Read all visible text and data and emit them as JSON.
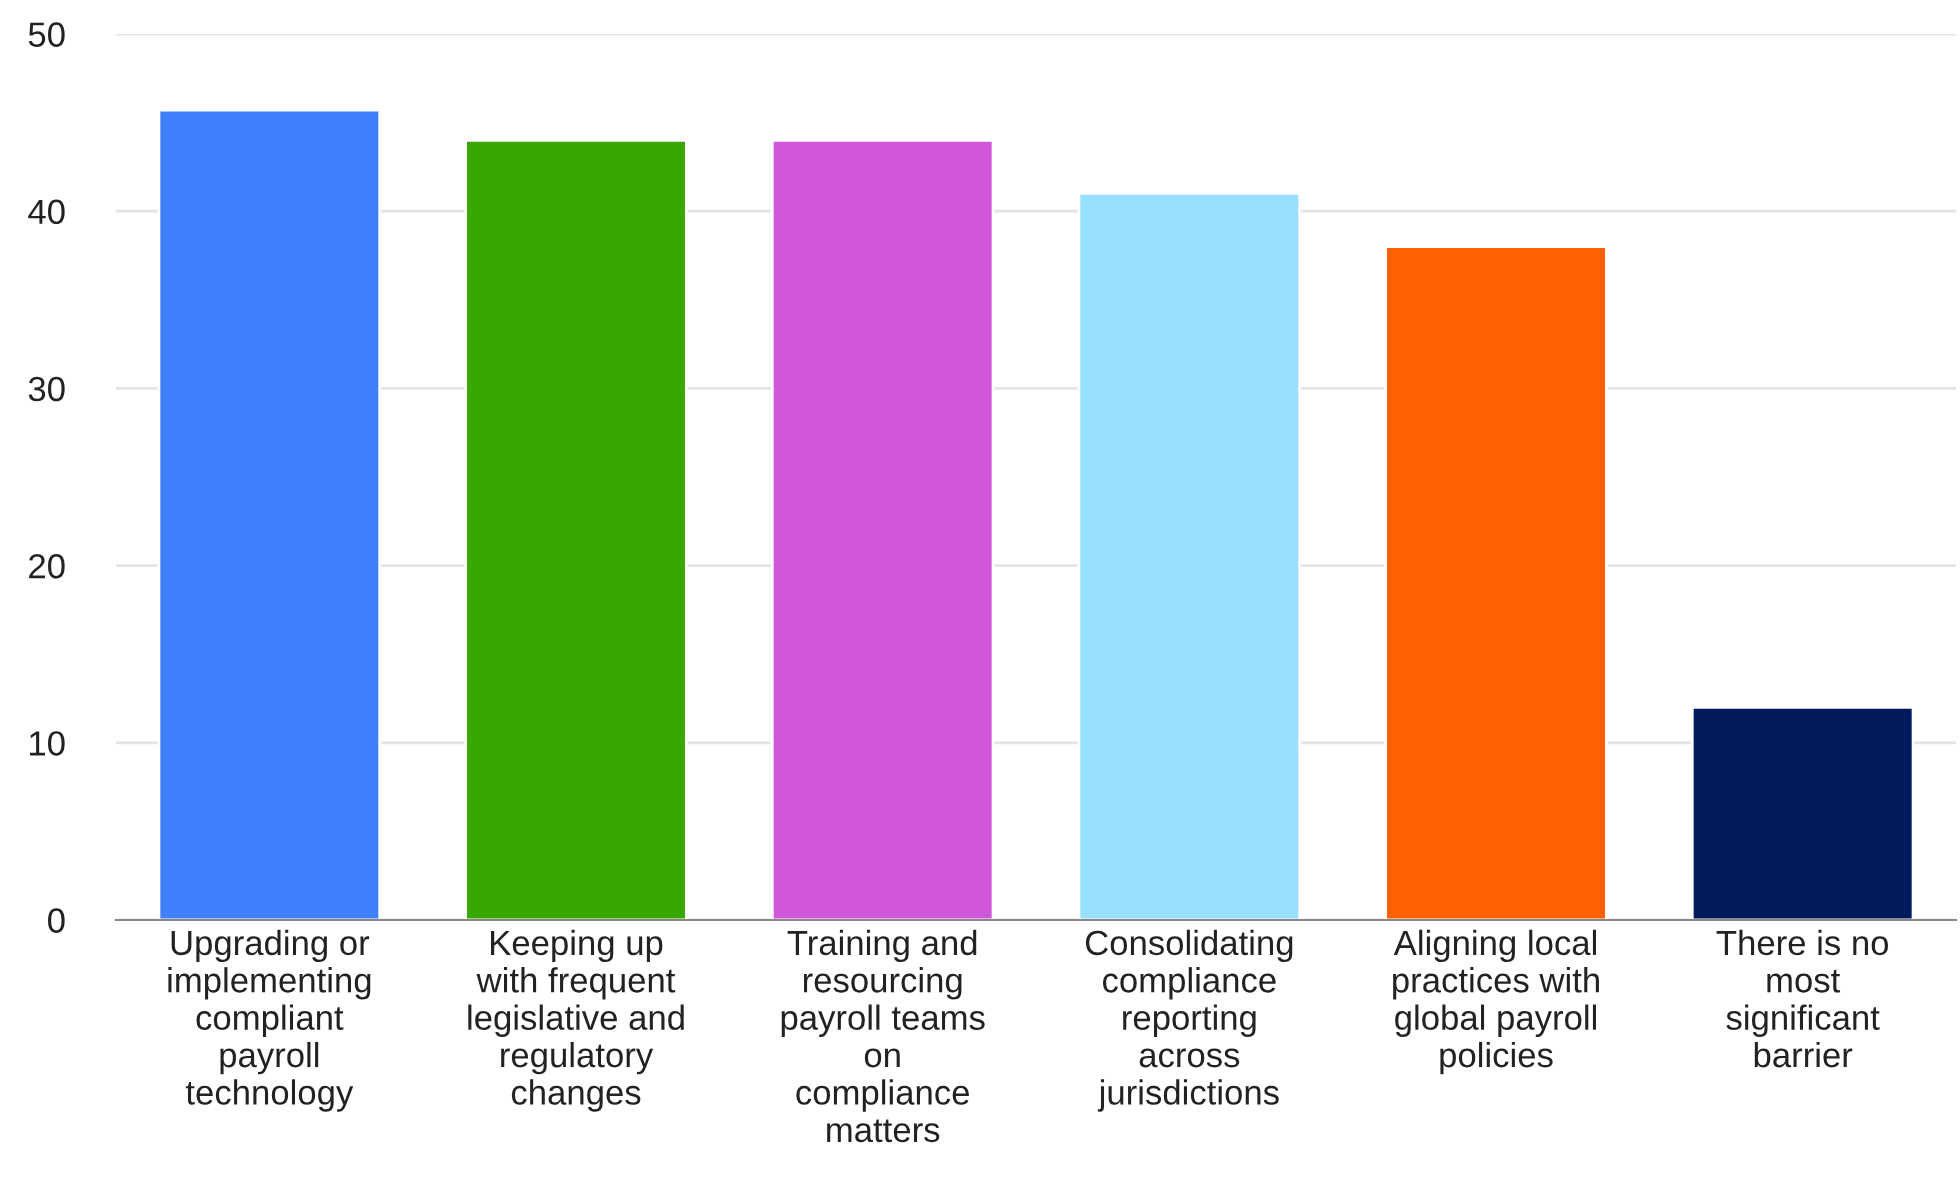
{
  "chart_data": {
    "type": "bar",
    "categories": [
      "Upgrading or\nimplementing\ncompliant\npayroll\ntechnology",
      "Keeping up\nwith frequent\nlegislative and\nregulatory\nchanges",
      "Training and\nresourcing\npayroll teams\non\ncompliance\nmatters",
      "Consolidating\ncompliance\nreporting\nacross\njurisdictions",
      "Aligning local\npractices with\nglobal payroll\npolicies",
      "There is no\nmost\nsignificant\nbarrier"
    ],
    "values": [
      45.7,
      44,
      44,
      41,
      38,
      12
    ],
    "colors": [
      "#4080ff",
      "#38a800",
      "#d058d8",
      "#98e0ff",
      "#ff6000",
      "#001a5c"
    ],
    "ylim": [
      0,
      50
    ],
    "yticks": [
      0,
      10,
      20,
      30,
      40,
      50
    ],
    "grid": "y",
    "legend": false
  }
}
